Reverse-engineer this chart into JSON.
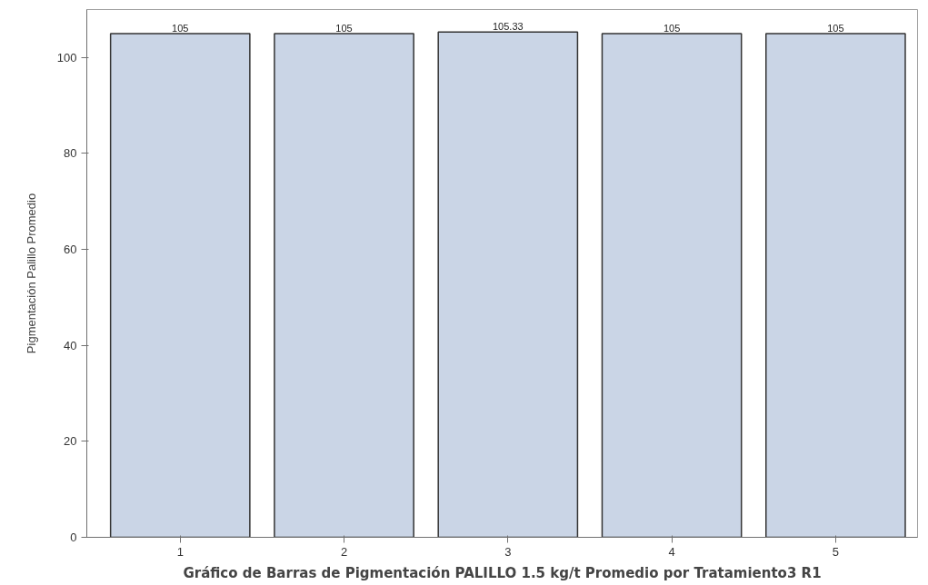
{
  "chart_data": {
    "type": "bar",
    "title": "Gráfico de Barras de Pigmentación PALILLO 1.5 kg/t Promedio por Tratamiento3 R1",
    "ylabel": "Pigmentación Palillo Promedio",
    "categories": [
      "1",
      "2",
      "3",
      "4",
      "5"
    ],
    "values": [
      105,
      105,
      105.33,
      105,
      105
    ],
    "color": "#cad5e6",
    "ylim": [
      0,
      110
    ],
    "yticks": [
      0,
      20,
      40,
      60,
      80,
      100
    ],
    "data_labels": true,
    "grid": false
  }
}
